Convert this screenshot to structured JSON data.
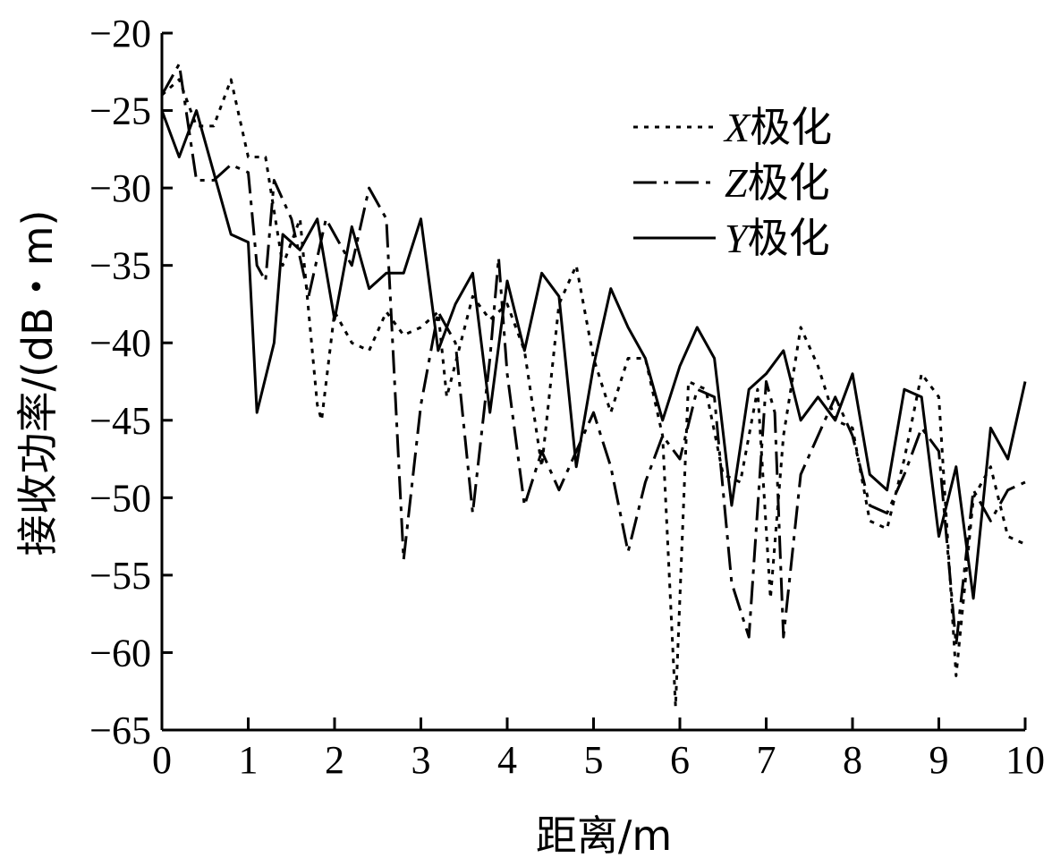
{
  "chart_data": {
    "type": "line",
    "title": "",
    "xlabel": "距离/m",
    "ylabel": "接收功率/(dB・m)",
    "xlim": [
      0,
      10
    ],
    "ylim": [
      -65,
      -20
    ],
    "x_ticks": [
      "0",
      "1",
      "2",
      "3",
      "4",
      "5",
      "6",
      "7",
      "8",
      "9",
      "10"
    ],
    "y_ticks": [
      "−20",
      "−25",
      "−30",
      "−35",
      "−40",
      "−45",
      "−50",
      "−55",
      "−60",
      "−65"
    ],
    "grid": false,
    "legend_position": "top-right",
    "series": [
      {
        "name_italic": "X",
        "name_suffix": "极化",
        "style": "dotted",
        "x": [
          0,
          0.2,
          0.4,
          0.6,
          0.8,
          1.0,
          1.2,
          1.4,
          1.6,
          1.8,
          1.85,
          2.0,
          2.2,
          2.4,
          2.6,
          2.8,
          3.0,
          3.2,
          3.3,
          3.6,
          3.8,
          4.0,
          4.2,
          4.4,
          4.6,
          4.8,
          5.0,
          5.2,
          5.4,
          5.6,
          5.8,
          5.95,
          6.1,
          6.3,
          6.5,
          6.7,
          6.9,
          7.05,
          7.2,
          7.4,
          7.6,
          7.8,
          8.0,
          8.2,
          8.4,
          8.6,
          8.8,
          9.0,
          9.2,
          9.4,
          9.6,
          9.8,
          10.0
        ],
        "values": [
          -24,
          -23,
          -26,
          -26,
          -23,
          -28,
          -28,
          -35,
          -32,
          -44,
          -45,
          -38,
          -40,
          -40.5,
          -38,
          -39.5,
          -39,
          -38,
          -43.5,
          -37,
          -38.5,
          -37.5,
          -40.5,
          -48,
          -37.5,
          -35,
          -41,
          -44.5,
          -41,
          -41,
          -46,
          -63.5,
          -42.5,
          -43,
          -48.5,
          -49,
          -43,
          -56.5,
          -46,
          -39,
          -41.5,
          -45,
          -45.5,
          -51.5,
          -52,
          -47.5,
          -42,
          -43.5,
          -61.5,
          -50,
          -48,
          -52.5,
          -53
        ]
      },
      {
        "name_italic": "Z",
        "name_suffix": "极化",
        "style": "dash-dot",
        "x": [
          0,
          0.2,
          0.4,
          0.6,
          0.8,
          1.0,
          1.1,
          1.2,
          1.3,
          1.5,
          1.7,
          1.9,
          2.0,
          2.2,
          2.4,
          2.6,
          2.8,
          3.0,
          3.2,
          3.4,
          3.6,
          3.8,
          3.9,
          4.0,
          4.2,
          4.4,
          4.6,
          4.8,
          5.0,
          5.2,
          5.4,
          5.6,
          5.8,
          6.0,
          6.2,
          6.4,
          6.6,
          6.8,
          7.0,
          7.1,
          7.2,
          7.4,
          7.6,
          7.8,
          8.0,
          8.2,
          8.4,
          8.6,
          8.8,
          9.0,
          9.2,
          9.4,
          9.6,
          9.8,
          10.0
        ],
        "values": [
          -24,
          -22,
          -29.5,
          -29.5,
          -28.5,
          -29,
          -35,
          -36,
          -29.5,
          -32,
          -37,
          -32,
          -33,
          -35,
          -30,
          -32,
          -54,
          -44,
          -38,
          -40,
          -51,
          -41,
          -34.5,
          -42,
          -50.5,
          -47,
          -49.5,
          -47,
          -44.5,
          -48,
          -53.5,
          -49,
          -46,
          -47.5,
          -43,
          -43.5,
          -55.5,
          -59,
          -42.5,
          -44.5,
          -59,
          -48.5,
          -46,
          -43.5,
          -46,
          -50.5,
          -51,
          -48.5,
          -45.5,
          -47,
          -59.5,
          -49.5,
          -51.5,
          -49.5,
          -49
        ]
      },
      {
        "name_italic": "Y",
        "name_suffix": "极化",
        "style": "solid",
        "x": [
          0,
          0.2,
          0.4,
          0.6,
          0.8,
          1.0,
          1.1,
          1.3,
          1.4,
          1.6,
          1.8,
          2.0,
          2.2,
          2.4,
          2.6,
          2.8,
          3.0,
          3.2,
          3.4,
          3.6,
          3.8,
          4.0,
          4.2,
          4.4,
          4.6,
          4.8,
          5.0,
          5.2,
          5.4,
          5.6,
          5.8,
          6.0,
          6.2,
          6.4,
          6.6,
          6.8,
          7.0,
          7.2,
          7.4,
          7.6,
          7.8,
          8.0,
          8.2,
          8.4,
          8.6,
          8.8,
          9.0,
          9.2,
          9.4,
          9.6,
          9.8,
          10.0
        ],
        "values": [
          -25,
          -28,
          -25,
          -29,
          -33,
          -33.5,
          -44.5,
          -40,
          -33,
          -34,
          -32,
          -38.5,
          -32.5,
          -36.5,
          -35.5,
          -35.5,
          -32,
          -40.5,
          -37.5,
          -35.5,
          -44.5,
          -36,
          -40.5,
          -35.5,
          -37,
          -48,
          -41.5,
          -36.5,
          -39,
          -41,
          -45,
          -41.5,
          -39,
          -41,
          -50.5,
          -43,
          -42,
          -40.5,
          -45,
          -43.5,
          -45,
          -42,
          -48.5,
          -49.5,
          -43,
          -43.5,
          -52.5,
          -48,
          -56.5,
          -45.5,
          -47.5,
          -42.5
        ]
      }
    ]
  }
}
